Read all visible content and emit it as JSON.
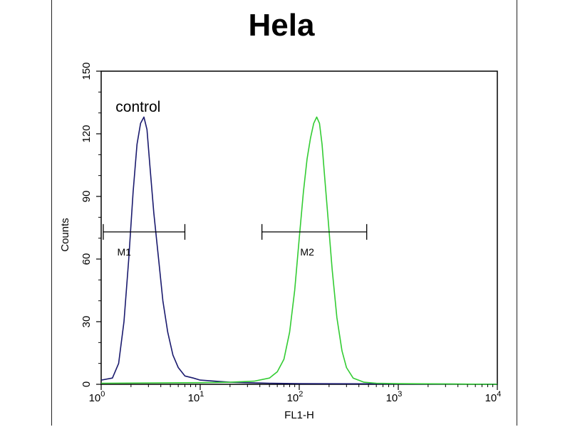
{
  "chart_data": {
    "type": "line",
    "title": "Hela",
    "xlabel": "FL1-H",
    "ylabel": "Counts",
    "x_scale": "log",
    "xlim": [
      1,
      10000
    ],
    "ylim": [
      0,
      150
    ],
    "x_ticks": [
      {
        "value": 1,
        "base": "10",
        "exp": "0"
      },
      {
        "value": 10,
        "base": "10",
        "exp": "1"
      },
      {
        "value": 100,
        "base": "10",
        "exp": "2"
      },
      {
        "value": 1000,
        "base": "10",
        "exp": "3"
      },
      {
        "value": 10000,
        "base": "10",
        "exp": "4"
      }
    ],
    "y_ticks": [
      0,
      30,
      60,
      90,
      120,
      150
    ],
    "grid": false,
    "annotations": [
      {
        "text": "control",
        "x": 1.4,
        "y": 133
      }
    ],
    "markers": [
      {
        "label": "M1",
        "x_start": 1.05,
        "x_end": 7,
        "y": 73
      },
      {
        "label": "M2",
        "x_start": 42,
        "x_end": 480,
        "y": 73
      }
    ],
    "series": [
      {
        "color": "#1a1a6e",
        "x": [
          1,
          1.3,
          1.5,
          1.7,
          1.9,
          2.1,
          2.3,
          2.5,
          2.7,
          2.9,
          3.1,
          3.4,
          3.8,
          4.2,
          4.7,
          5.3,
          6,
          7,
          8.5,
          10,
          14,
          20,
          30,
          50,
          100,
          1000,
          10000
        ],
        "y": [
          2,
          3,
          10,
          30,
          60,
          92,
          115,
          125,
          128,
          122,
          105,
          82,
          60,
          40,
          25,
          14,
          8,
          4,
          3,
          2,
          1.5,
          1,
          0.8,
          0.5,
          0.3,
          0.2,
          0
        ]
      },
      {
        "color": "#33cc33",
        "x": [
          1,
          10,
          20,
          35,
          50,
          60,
          70,
          80,
          90,
          100,
          110,
          120,
          130,
          140,
          150,
          160,
          170,
          180,
          195,
          215,
          240,
          270,
          300,
          350,
          450,
          600,
          1000,
          10000
        ],
        "y": [
          0.5,
          0.8,
          1,
          1.5,
          3,
          6,
          12,
          25,
          45,
          70,
          92,
          108,
          118,
          125,
          128,
          125,
          115,
          100,
          80,
          55,
          32,
          16,
          8,
          3,
          1,
          0.5,
          0.3,
          0
        ]
      }
    ]
  }
}
